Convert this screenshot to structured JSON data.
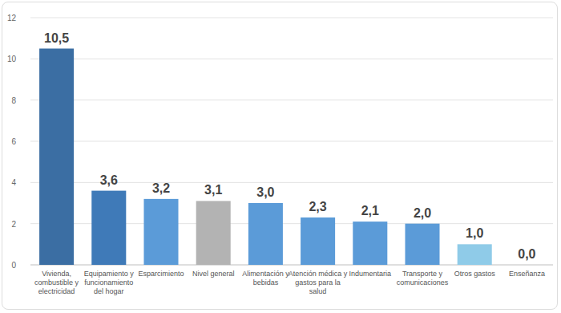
{
  "chart_data": {
    "type": "bar",
    "categories": [
      "Vivienda, combustible y electricidad",
      "Equipamiento y funcionamiento del hogar",
      "Esparcimiento",
      "Nivel general",
      "Alimentación y bebidas",
      "Atención médica y gastos para la salud",
      "Indumentaria",
      "Transporte y comunicaciones",
      "Otros gastos",
      "Enseñanza"
    ],
    "values": [
      10.5,
      3.6,
      3.2,
      3.1,
      3.0,
      2.3,
      2.1,
      2.0,
      1.0,
      0.0
    ],
    "value_labels": [
      "10,5",
      "3,6",
      "3,2",
      "3,1",
      "3,0",
      "2,3",
      "2,1",
      "2,0",
      "1,0",
      "0,0"
    ],
    "colors": [
      "#3b6ea3",
      "#3f7ab8",
      "#5b9bd8",
      "#b3b3b3",
      "#5b9bd8",
      "#5b9bd8",
      "#5b9bd8",
      "#5b9bd8",
      "#8fcbe8",
      "#5b9bd8"
    ],
    "ylim": [
      0,
      12
    ],
    "yticks": [
      0,
      2,
      4,
      6,
      8,
      10,
      12
    ],
    "grid": true,
    "data_labels": true
  }
}
